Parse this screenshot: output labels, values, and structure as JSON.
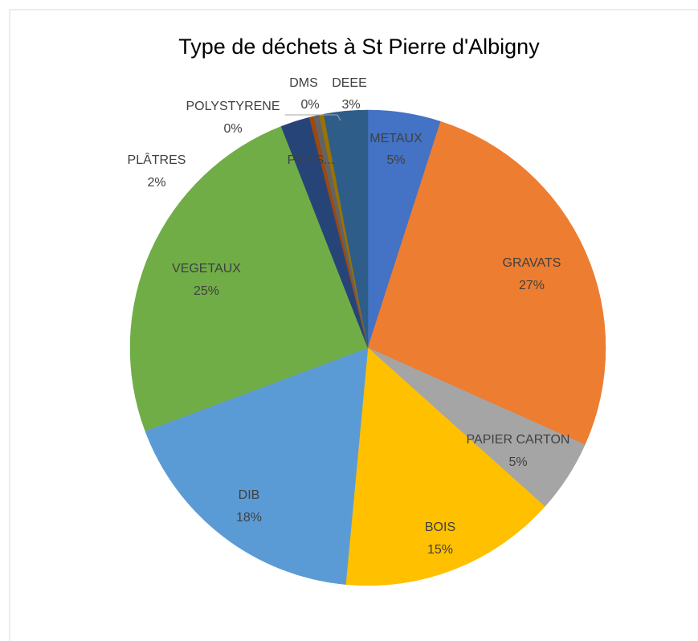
{
  "chart_data": {
    "type": "pie",
    "title": "Type de déchets à St Pierre d'Albigny",
    "categories": [
      "METAUX",
      "GRAVATS",
      "PAPIER CARTON",
      "BOIS",
      "DIB",
      "VEGETAUX",
      "PLÂTRES",
      "POLYSTYRENE",
      "DMS",
      "PILES...",
      "DEEE"
    ],
    "values": [
      5,
      27,
      5,
      15,
      18,
      25,
      2,
      0.3,
      0.4,
      0.3,
      3
    ],
    "value_labels": [
      "5%",
      "27%",
      "5%",
      "15%",
      "18%",
      "25%",
      "2%",
      "0%",
      "0%",
      null,
      "3%"
    ],
    "colors": [
      "#4472c4",
      "#ed7d31",
      "#a5a5a5",
      "#ffc000",
      "#5b9bd5",
      "#70ad47",
      "#264478",
      "#9e480e",
      "#636363",
      "#997300",
      "#2f5d8a"
    ]
  }
}
